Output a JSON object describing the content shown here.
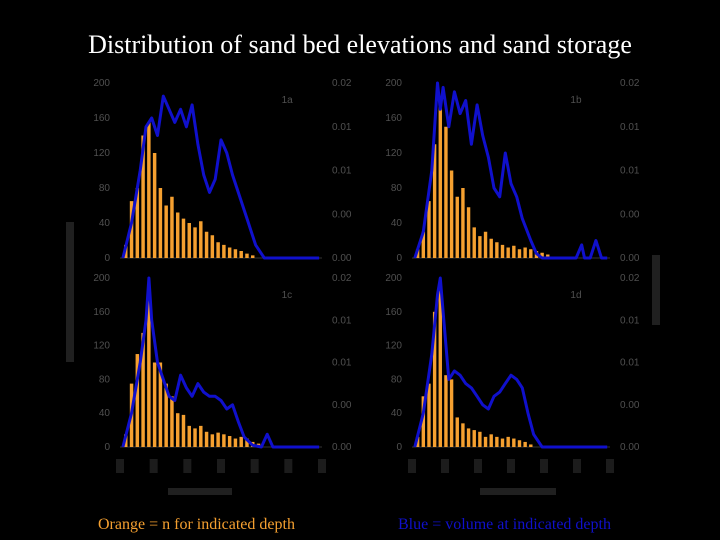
{
  "slide": {
    "title": "Distribution of sand bed elevations and sand storage",
    "legend_orange": "Orange = n for indicated depth",
    "legend_blue": "Blue = volume at indicated depth"
  },
  "colors": {
    "background": "#000000",
    "bars": "#f5a030",
    "line": "#1010cc",
    "axis_text": "#505050",
    "title": "#ffffff"
  },
  "chart_data": [
    {
      "type": "bar",
      "panel_label": "1a",
      "ylim_left": [
        0,
        200
      ],
      "left_ticks": [
        "0",
        "40",
        "80",
        "120",
        "160",
        "200"
      ],
      "right_ticks": [
        "0.00",
        "0.00",
        "0.01",
        "0.01",
        "0.02"
      ],
      "xlim": [
        0,
        3.5
      ],
      "bar_width": 0.06,
      "bars": [
        {
          "x": 0.1,
          "value": 15
        },
        {
          "x": 0.2,
          "value": 65
        },
        {
          "x": 0.3,
          "value": 80
        },
        {
          "x": 0.4,
          "value": 140
        },
        {
          "x": 0.5,
          "value": 155
        },
        {
          "x": 0.6,
          "value": 120
        },
        {
          "x": 0.7,
          "value": 80
        },
        {
          "x": 0.8,
          "value": 60
        },
        {
          "x": 0.9,
          "value": 70
        },
        {
          "x": 1.0,
          "value": 52
        },
        {
          "x": 1.1,
          "value": 45
        },
        {
          "x": 1.2,
          "value": 40
        },
        {
          "x": 1.3,
          "value": 35
        },
        {
          "x": 1.4,
          "value": 42
        },
        {
          "x": 1.5,
          "value": 30
        },
        {
          "x": 1.6,
          "value": 26
        },
        {
          "x": 1.7,
          "value": 18
        },
        {
          "x": 1.8,
          "value": 15
        },
        {
          "x": 1.9,
          "value": 12
        },
        {
          "x": 2.0,
          "value": 10
        },
        {
          "x": 2.1,
          "value": 8
        },
        {
          "x": 2.2,
          "value": 5
        },
        {
          "x": 2.3,
          "value": 3
        }
      ],
      "line": {
        "x": [
          0.05,
          0.2,
          0.35,
          0.45,
          0.55,
          0.65,
          0.75,
          0.85,
          0.95,
          1.05,
          1.15,
          1.25,
          1.35,
          1.45,
          1.55,
          1.65,
          1.75,
          1.85,
          1.95,
          2.05,
          2.2,
          2.35,
          2.5,
          3.45
        ],
        "y": [
          0,
          40,
          100,
          150,
          160,
          140,
          185,
          170,
          155,
          170,
          150,
          175,
          130,
          95,
          75,
          90,
          135,
          120,
          95,
          75,
          45,
          15,
          0,
          0
        ]
      }
    },
    {
      "type": "bar",
      "panel_label": "1b",
      "ylim_left": [
        0,
        200
      ],
      "left_ticks": [
        "0",
        "40",
        "80",
        "120",
        "160",
        "200"
      ],
      "right_ticks": [
        "0.00",
        "0.00",
        "0.01",
        "0.01",
        "0.02"
      ],
      "xlim": [
        0,
        3.5
      ],
      "bar_width": 0.06,
      "bars": [
        {
          "x": 0.1,
          "value": 10
        },
        {
          "x": 0.2,
          "value": 30
        },
        {
          "x": 0.3,
          "value": 65
        },
        {
          "x": 0.4,
          "value": 130
        },
        {
          "x": 0.5,
          "value": 175
        },
        {
          "x": 0.6,
          "value": 150
        },
        {
          "x": 0.7,
          "value": 100
        },
        {
          "x": 0.8,
          "value": 70
        },
        {
          "x": 0.9,
          "value": 80
        },
        {
          "x": 1.0,
          "value": 58
        },
        {
          "x": 1.1,
          "value": 35
        },
        {
          "x": 1.2,
          "value": 25
        },
        {
          "x": 1.3,
          "value": 30
        },
        {
          "x": 1.4,
          "value": 22
        },
        {
          "x": 1.5,
          "value": 18
        },
        {
          "x": 1.6,
          "value": 15
        },
        {
          "x": 1.7,
          "value": 12
        },
        {
          "x": 1.8,
          "value": 14
        },
        {
          "x": 1.9,
          "value": 10
        },
        {
          "x": 2.0,
          "value": 12
        },
        {
          "x": 2.1,
          "value": 10
        },
        {
          "x": 2.2,
          "value": 8
        },
        {
          "x": 2.3,
          "value": 6
        },
        {
          "x": 2.4,
          "value": 4
        }
      ],
      "line": {
        "x": [
          0.05,
          0.2,
          0.35,
          0.45,
          0.5,
          0.55,
          0.65,
          0.75,
          0.85,
          0.95,
          1.05,
          1.15,
          1.25,
          1.35,
          1.45,
          1.55,
          1.65,
          1.75,
          1.85,
          1.95,
          2.1,
          2.2,
          2.3,
          2.5,
          2.7,
          2.9,
          3.0,
          3.05,
          3.15,
          3.25,
          3.35,
          3.45
        ],
        "y": [
          0,
          30,
          100,
          200,
          170,
          195,
          150,
          190,
          165,
          180,
          130,
          175,
          140,
          115,
          80,
          70,
          120,
          85,
          70,
          45,
          20,
          5,
          0,
          0,
          0,
          0,
          15,
          0,
          0,
          20,
          0,
          0
        ]
      }
    },
    {
      "type": "bar",
      "panel_label": "1c",
      "ylim_left": [
        0,
        200
      ],
      "left_ticks": [
        "0",
        "40",
        "80",
        "120",
        "160",
        "200"
      ],
      "right_ticks": [
        "0.00",
        "0.00",
        "0.01",
        "0.01",
        "0.02"
      ],
      "xlim": [
        0,
        3.5
      ],
      "bar_width": 0.06,
      "bars": [
        {
          "x": 0.1,
          "value": 15
        },
        {
          "x": 0.2,
          "value": 75
        },
        {
          "x": 0.3,
          "value": 110
        },
        {
          "x": 0.4,
          "value": 135
        },
        {
          "x": 0.5,
          "value": 185
        },
        {
          "x": 0.6,
          "value": 100
        },
        {
          "x": 0.7,
          "value": 100
        },
        {
          "x": 0.8,
          "value": 75
        },
        {
          "x": 0.9,
          "value": 60
        },
        {
          "x": 1.0,
          "value": 40
        },
        {
          "x": 1.1,
          "value": 38
        },
        {
          "x": 1.2,
          "value": 25
        },
        {
          "x": 1.3,
          "value": 22
        },
        {
          "x": 1.4,
          "value": 25
        },
        {
          "x": 1.5,
          "value": 18
        },
        {
          "x": 1.6,
          "value": 15
        },
        {
          "x": 1.7,
          "value": 17
        },
        {
          "x": 1.8,
          "value": 15
        },
        {
          "x": 1.9,
          "value": 13
        },
        {
          "x": 2.0,
          "value": 10
        },
        {
          "x": 2.1,
          "value": 12
        },
        {
          "x": 2.2,
          "value": 10
        },
        {
          "x": 2.3,
          "value": 6
        },
        {
          "x": 2.4,
          "value": 4
        }
      ],
      "line": {
        "x": [
          0.05,
          0.2,
          0.35,
          0.45,
          0.5,
          0.55,
          0.65,
          0.75,
          0.85,
          0.95,
          1.05,
          1.15,
          1.25,
          1.35,
          1.45,
          1.55,
          1.65,
          1.75,
          1.85,
          1.95,
          2.05,
          2.15,
          2.3,
          2.45,
          2.55,
          2.65,
          2.75,
          3.45
        ],
        "y": [
          0,
          40,
          100,
          150,
          200,
          150,
          100,
          80,
          60,
          55,
          85,
          70,
          60,
          75,
          65,
          60,
          60,
          55,
          45,
          50,
          30,
          12,
          2,
          0,
          15,
          0,
          0,
          0
        ]
      }
    },
    {
      "type": "bar",
      "panel_label": "1d",
      "ylim_left": [
        0,
        200
      ],
      "left_ticks": [
        "0",
        "40",
        "80",
        "120",
        "160",
        "200"
      ],
      "right_ticks": [
        "0.00",
        "0.00",
        "0.01",
        "0.01",
        "0.02"
      ],
      "xlim": [
        0,
        3.5
      ],
      "bar_width": 0.06,
      "bars": [
        {
          "x": 0.1,
          "value": 12
        },
        {
          "x": 0.2,
          "value": 60
        },
        {
          "x": 0.3,
          "value": 75
        },
        {
          "x": 0.4,
          "value": 160
        },
        {
          "x": 0.5,
          "value": 185
        },
        {
          "x": 0.6,
          "value": 85
        },
        {
          "x": 0.7,
          "value": 80
        },
        {
          "x": 0.8,
          "value": 35
        },
        {
          "x": 0.9,
          "value": 28
        },
        {
          "x": 1.0,
          "value": 22
        },
        {
          "x": 1.1,
          "value": 20
        },
        {
          "x": 1.2,
          "value": 18
        },
        {
          "x": 1.3,
          "value": 12
        },
        {
          "x": 1.4,
          "value": 15
        },
        {
          "x": 1.5,
          "value": 12
        },
        {
          "x": 1.6,
          "value": 10
        },
        {
          "x": 1.7,
          "value": 12
        },
        {
          "x": 1.8,
          "value": 10
        },
        {
          "x": 1.9,
          "value": 8
        },
        {
          "x": 2.0,
          "value": 6
        },
        {
          "x": 2.1,
          "value": 3
        }
      ],
      "line": {
        "x": [
          0.05,
          0.2,
          0.35,
          0.45,
          0.5,
          0.55,
          0.65,
          0.75,
          0.85,
          0.95,
          1.05,
          1.15,
          1.25,
          1.35,
          1.45,
          1.55,
          1.65,
          1.75,
          1.85,
          1.95,
          2.05,
          2.15,
          2.3,
          3.45
        ],
        "y": [
          0,
          40,
          110,
          180,
          200,
          160,
          80,
          90,
          85,
          75,
          70,
          60,
          50,
          45,
          60,
          65,
          75,
          85,
          80,
          70,
          40,
          15,
          0,
          0
        ]
      }
    }
  ]
}
